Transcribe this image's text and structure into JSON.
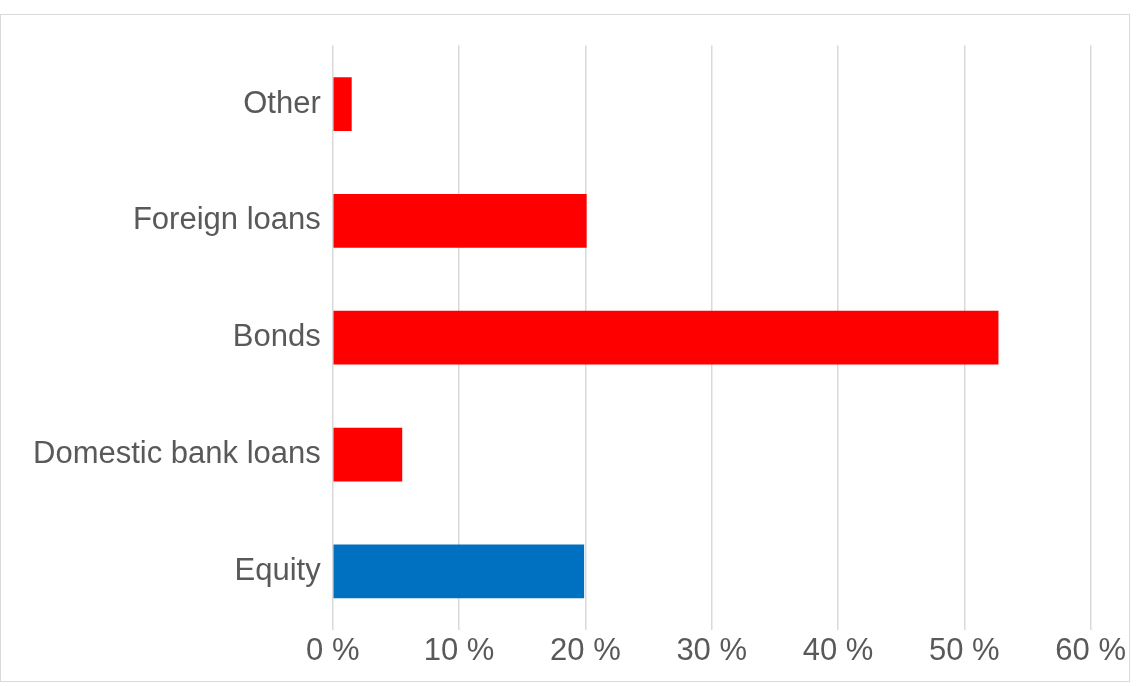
{
  "chart_data": {
    "type": "bar",
    "orientation": "horizontal",
    "categories": [
      "Other",
      "Foreign loans",
      "Bonds",
      "Domestic bank loans",
      "Equity"
    ],
    "values": [
      1.5,
      20.1,
      52.7,
      5.5,
      19.9
    ],
    "colors": [
      "#ff0000",
      "#ff0000",
      "#ff0000",
      "#ff0000",
      "#0070c0"
    ],
    "xlim": [
      0,
      60
    ],
    "xticks": [
      {
        "value": 0,
        "label": "0 %"
      },
      {
        "value": 10,
        "label": "10 %"
      },
      {
        "value": 20,
        "label": "20 %"
      },
      {
        "value": 30,
        "label": "30 %"
      },
      {
        "value": 40,
        "label": "40 %"
      },
      {
        "value": 50,
        "label": "50 %"
      },
      {
        "value": 60,
        "label": "60 %"
      }
    ],
    "grid": "x",
    "legend": false
  }
}
